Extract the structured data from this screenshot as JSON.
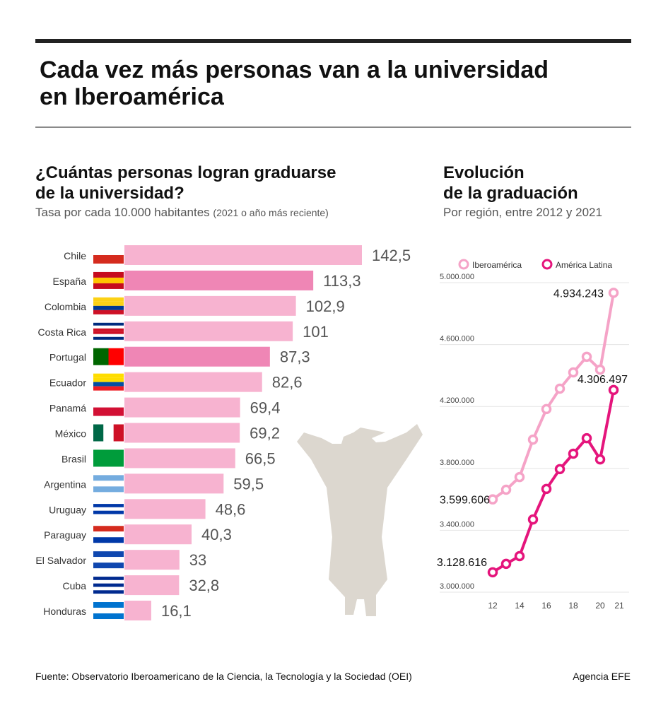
{
  "title": [
    "Cada vez más personas van a la universidad",
    "en Iberoamérica"
  ],
  "chart_data": [
    {
      "type": "bar",
      "title": [
        "¿Cuántas personas logran graduarse",
        "de la universidad?"
      ],
      "subtitle": "Tasa por cada 10.000 habitantes",
      "subtitle_note": "(2021 o año más reciente)",
      "categories": [
        "Chile",
        "España",
        "Colombia",
        "Costa Rica",
        "Portugal",
        "Ecuador",
        "Panamá",
        "México",
        "Brasil",
        "Argentina",
        "Uruguay",
        "Paraguay",
        "El Salvador",
        "Cuba",
        "Honduras"
      ],
      "values": [
        142.5,
        113.3,
        102.9,
        101,
        87.3,
        82.6,
        69.4,
        69.2,
        66.5,
        59.5,
        48.6,
        40.3,
        33,
        32.8,
        16.1
      ],
      "value_labels": [
        "142,5",
        "113,3",
        "102,9",
        "101",
        "87,3",
        "82,6",
        "69,4",
        "69,2",
        "66,5",
        "59,5",
        "48,6",
        "40,3",
        "33",
        "32,8",
        "16,1"
      ],
      "colors": [
        "#f7b3d0",
        "#ef86b5",
        "#f7b3d0",
        "#f7b3d0",
        "#ef86b5",
        "#f7b3d0",
        "#f7b3d0",
        "#f7b3d0",
        "#f7b3d0",
        "#f7b3d0",
        "#f7b3d0",
        "#f7b3d0",
        "#f7b3d0",
        "#f7b3d0",
        "#f7b3d0"
      ]
    },
    {
      "type": "line",
      "title": [
        "Evolución",
        "de la graduación"
      ],
      "subtitle": "Por región, entre 2012 y 2021",
      "x": [
        2012,
        2013,
        2014,
        2015,
        2016,
        2017,
        2018,
        2019,
        2020,
        2021
      ],
      "xlim": [
        2012,
        2021
      ],
      "xticks": [
        {
          "value": 2012,
          "label": "12"
        },
        {
          "value": 2014,
          "label": "14"
        },
        {
          "value": 2016,
          "label": "16"
        },
        {
          "value": 2018,
          "label": "18"
        },
        {
          "value": 2020,
          "label": "20"
        },
        {
          "value": 2021,
          "label": "21"
        }
      ],
      "ylim": [
        3000000,
        5000000
      ],
      "yticks": [
        {
          "value": 3000000,
          "label": "3.000.000"
        },
        {
          "value": 3400000,
          "label": "3.400.000"
        },
        {
          "value": 3800000,
          "label": "3.800.000"
        },
        {
          "value": 4200000,
          "label": "4.200.000"
        },
        {
          "value": 4600000,
          "label": "4.600.000"
        },
        {
          "value": 5000000,
          "label": "5.000.000"
        }
      ],
      "grid": true,
      "series": [
        {
          "name": "Iberoamérica",
          "color": "#f5a3c7",
          "values": [
            3599606,
            3662000,
            3744000,
            3986000,
            4183000,
            4315000,
            4420000,
            4521000,
            4438000,
            4934243
          ],
          "value_labels": [
            "3.599.606",
            null,
            null,
            null,
            null,
            null,
            null,
            null,
            null,
            "4.934.243"
          ]
        },
        {
          "name": "América Latina",
          "color": "#e5157c",
          "values": [
            3128616,
            3183000,
            3233000,
            3470000,
            3667000,
            3795000,
            3895000,
            3995000,
            3858000,
            4306497
          ],
          "value_labels": [
            "3.128.616",
            null,
            null,
            null,
            null,
            null,
            null,
            null,
            null,
            "4.306.497"
          ]
        }
      ]
    }
  ],
  "source": "Fuente: Observatorio Iberoamericano de la Ciencia, la Tecnología y la Sociedad (OEI)",
  "credit": "Agencia EFE"
}
